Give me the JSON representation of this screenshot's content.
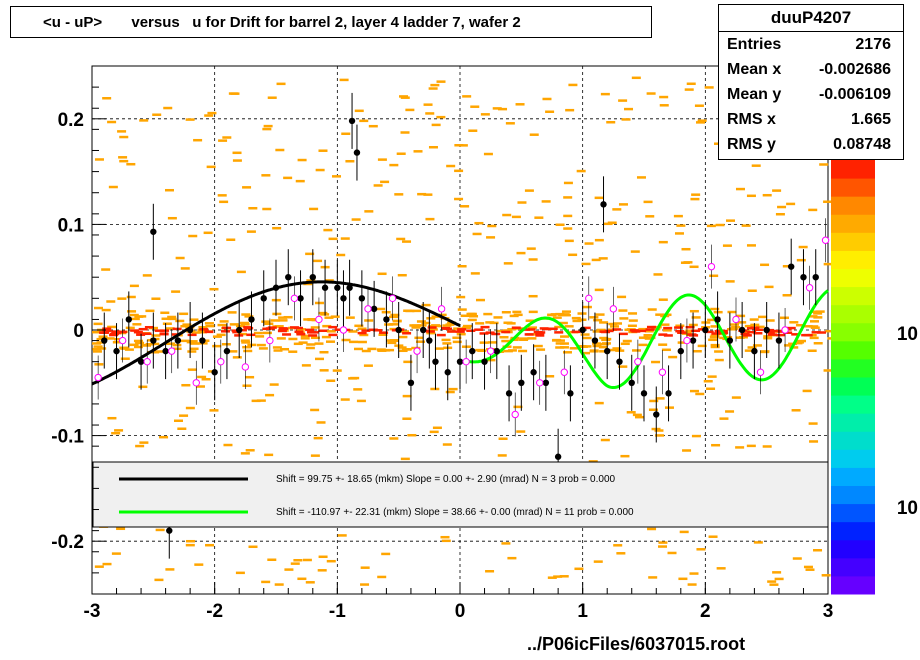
{
  "title": "<u - uP>       versus   u for Drift for barrel 2, layer 4 ladder 7, wafer 2",
  "stats": {
    "name": "duuP4207",
    "rows": [
      {
        "label": "Entries",
        "value": "2176"
      },
      {
        "label": "Mean x",
        "value": "-0.002686"
      },
      {
        "label": "Mean y",
        "value": "-0.006109"
      },
      {
        "label": "RMS x",
        "value": "1.665"
      },
      {
        "label": "RMS y",
        "value": "0.08748"
      }
    ]
  },
  "footer": "../P06icFiles/6037015.root",
  "colorbar_labels": [
    "10",
    "10"
  ],
  "colors": {
    "black_fit": "#000000",
    "green_fit": "#00ff00",
    "hist_orange": "#ffa500",
    "hist_red": "#ff2200",
    "open_marker": "#ff00ff",
    "legend_bg": "#f0f0f0"
  },
  "legend": [
    {
      "text": "Shift =    99.75 +- 18.65 (mkm) Slope =    0.00 +- 2.90 (mrad)  N = 3 prob = 0.000",
      "color": "#000000"
    },
    {
      "text": "Shift =  -110.97 +- 22.31 (mkm) Slope =    38.66 +- 0.00 (mrad)  N = 11 prob = 0.000",
      "color": "#00ff00"
    }
  ],
  "chart_data": {
    "type": "scatter",
    "xlim": [
      -3,
      3
    ],
    "ylim": [
      -0.25,
      0.25
    ],
    "grid": true,
    "x_ticks": [
      "-3",
      "-2",
      "-1",
      "0",
      "1",
      "2",
      "3"
    ],
    "y_ticks": [
      "-0.2",
      "-0.1",
      "0",
      "0.1",
      "0.2"
    ],
    "series": [
      {
        "marker": "filled-circle",
        "x": [
          -2.9,
          -2.8,
          -2.7,
          -2.6,
          -2.5,
          -2.4,
          -2.3,
          -2.2,
          -2.1,
          -2.0,
          -1.9,
          -1.8,
          -1.7,
          -1.6,
          -1.5,
          -1.4,
          -1.3,
          -1.2,
          -1.1,
          -1.0,
          -0.95,
          -0.9,
          -0.8,
          -0.7,
          -0.6,
          -0.5,
          -0.4,
          -0.3,
          -0.25,
          -0.2,
          -0.1,
          0.0,
          0.1,
          0.2,
          0.3,
          0.4,
          0.5,
          0.6,
          0.7,
          0.8,
          0.9,
          1.0,
          1.1,
          1.2,
          1.3,
          1.4,
          1.5,
          1.6,
          1.7,
          1.8,
          1.9,
          2.0,
          2.1,
          2.2,
          2.3,
          2.4,
          2.5,
          2.6,
          2.7,
          2.8,
          2.9,
          -2.5,
          -0.88,
          -0.84,
          1.17,
          -2.37
        ],
        "y": [
          -0.01,
          -0.02,
          0.01,
          -0.03,
          -0.01,
          -0.02,
          -0.01,
          0.0,
          -0.01,
          -0.04,
          -0.02,
          0.0,
          0.01,
          0.03,
          0.04,
          0.05,
          0.03,
          0.05,
          0.04,
          0.04,
          0.03,
          0.04,
          0.03,
          0.02,
          0.01,
          0.0,
          -0.05,
          0.0,
          -0.01,
          -0.03,
          -0.04,
          -0.03,
          -0.02,
          -0.03,
          -0.02,
          -0.06,
          -0.05,
          -0.04,
          -0.05,
          -0.12,
          -0.06,
          0.0,
          -0.01,
          -0.02,
          -0.03,
          -0.05,
          -0.06,
          -0.08,
          -0.06,
          -0.02,
          -0.01,
          0.0,
          0.01,
          -0.01,
          0.0,
          -0.02,
          0.0,
          -0.01,
          0.06,
          0.05,
          0.05,
          0.093,
          0.198,
          0.168,
          0.119,
          -0.19
        ]
      },
      {
        "marker": "open-circle",
        "x": [
          -2.95,
          -2.75,
          -2.55,
          -2.35,
          -2.15,
          -1.95,
          -1.75,
          -1.55,
          -1.35,
          -1.15,
          -0.95,
          -0.75,
          -0.55,
          -0.35,
          -0.15,
          0.05,
          0.25,
          0.45,
          0.65,
          0.85,
          1.05,
          1.25,
          1.45,
          1.65,
          1.85,
          2.05,
          2.25,
          2.45,
          2.65,
          2.85,
          2.98
        ],
        "y": [
          -0.045,
          -0.01,
          -0.03,
          -0.02,
          -0.05,
          -0.03,
          -0.035,
          -0.01,
          0.03,
          0.01,
          0.0,
          0.02,
          0.03,
          -0.02,
          0.02,
          -0.03,
          -0.02,
          -0.08,
          -0.05,
          -0.04,
          0.03,
          0.02,
          -0.03,
          -0.04,
          -0.01,
          0.06,
          0.01,
          -0.04,
          0.0,
          0.04,
          0.085
        ]
      }
    ],
    "fits": [
      {
        "x_range": [
          -3,
          0
        ],
        "shape": "black"
      },
      {
        "x_range": [
          0.05,
          3
        ],
        "shape": "green"
      }
    ]
  }
}
